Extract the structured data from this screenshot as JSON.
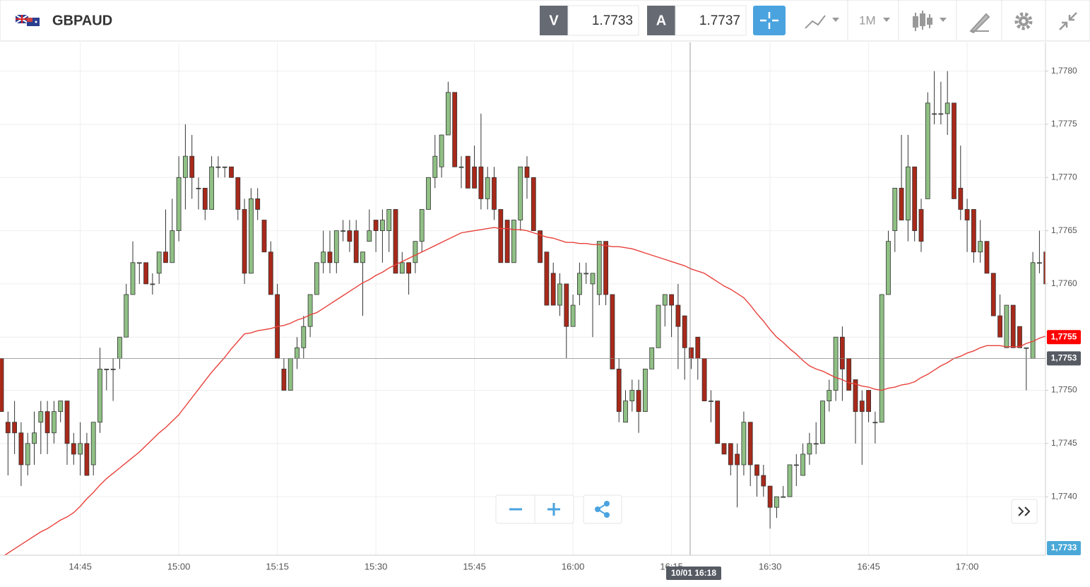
{
  "header": {
    "symbol": "GBPAUD",
    "bid_label": "V",
    "bid": "1.7733",
    "ask_label": "A",
    "ask": "1.7737",
    "timeframe": "1M"
  },
  "chart_data": {
    "type": "candlestick",
    "categories": [
      null,
      null,
      null,
      null,
      null,
      null,
      null,
      null,
      null,
      null,
      null,
      null,
      "14:45",
      null,
      null,
      null,
      null,
      null,
      null,
      null,
      null,
      null,
      null,
      null,
      null,
      null,
      null,
      "15:00",
      null,
      null,
      null,
      null,
      null,
      null,
      null,
      null,
      null,
      null,
      null,
      null,
      null,
      null,
      "15:15",
      null,
      null,
      null,
      null,
      null,
      null,
      null,
      null,
      null,
      null,
      null,
      null,
      null,
      null,
      "15:30",
      null,
      null,
      null,
      null,
      null,
      null,
      null,
      null,
      null,
      null,
      null,
      null,
      null,
      null,
      "15:45",
      null,
      null,
      null,
      null,
      null,
      null,
      null,
      null,
      null,
      null,
      null,
      null,
      null,
      null,
      "16:00",
      null,
      null,
      null,
      null,
      null,
      null,
      null,
      null,
      null,
      null,
      null,
      null,
      null,
      null,
      "16:15",
      null,
      null,
      null,
      null,
      null,
      null,
      null,
      null,
      null,
      null,
      null,
      null,
      null,
      null,
      "16:30",
      null,
      null,
      null,
      null,
      null,
      null,
      null,
      null,
      null,
      null,
      null,
      null,
      null,
      null,
      "16:45",
      null,
      null,
      null,
      null,
      null,
      null,
      null,
      null,
      null,
      null,
      null,
      null,
      null,
      null,
      "17:00",
      null,
      null,
      null,
      null,
      null,
      null,
      null,
      null,
      null,
      null,
      null,
      null
    ],
    "open": [
      1.7753,
      1.7747,
      1.7747,
      1.7746,
      1.7743,
      1.7745,
      1.7747,
      1.7748,
      1.7746,
      1.7748,
      1.7749,
      1.7745,
      1.7744,
      1.7745,
      1.7743,
      1.7747,
      1.7752,
      1.7752,
      1.7753,
      1.7755,
      1.7759,
      1.7762,
      1.7762,
      1.776,
      1.7761,
      1.7763,
      1.7762,
      1.7765,
      1.777,
      1.7772,
      1.7769,
      1.7769,
      1.7767,
      1.7771,
      1.7771,
      1.7771,
      1.777,
      1.7767,
      1.7761,
      1.7768,
      1.7766,
      1.7763,
      1.7759,
      1.7752,
      1.775,
      1.7753,
      1.7754,
      1.7756,
      1.7759,
      1.7762,
      1.7763,
      1.7762,
      1.7765,
      1.7765,
      1.7765,
      1.7762,
      1.7764,
      1.7766,
      1.7765,
      1.7765,
      1.7767,
      1.7761,
      1.7762,
      1.7762,
      1.7764,
      1.7767,
      1.777,
      1.7771,
      1.7774,
      1.7778,
      1.7771,
      1.7772,
      1.7771,
      1.7771,
      1.7768,
      1.777,
      1.7767,
      1.7766,
      1.7762,
      1.7766,
      1.7771,
      1.777,
      1.7765,
      1.7763,
      1.7761,
      1.7758,
      1.776,
      1.7756,
      1.7759,
      1.7761,
      1.776,
      1.7759,
      1.7764,
      1.7759,
      1.7752,
      1.7747,
      1.7749,
      1.775,
      1.7748,
      1.7752,
      1.7754,
      1.7758,
      1.7759,
      1.7758,
      1.7757,
      1.7754,
      1.7755,
      1.7753,
      1.7749,
      1.7749,
      1.7745,
      1.7745,
      1.7744,
      1.7743,
      1.7747,
      1.7743,
      1.7742,
      1.7741,
      1.7739,
      1.774,
      1.774,
      1.7743,
      1.7742,
      1.7744,
      1.7745,
      1.7745,
      1.7749,
      1.775,
      1.7755,
      1.7753,
      1.7751,
      1.7749,
      1.775,
      1.7747,
      1.7747,
      1.7759,
      1.7765,
      1.7769,
      1.7766,
      1.7771,
      1.7767,
      1.7768,
      1.7776,
      1.7776,
      1.7776,
      1.7777,
      1.7769,
      1.7767,
      1.7767,
      1.7763,
      1.7764,
      1.7761,
      1.7757,
      1.7754,
      1.7758,
      1.7756,
      1.7754,
      1.7753,
      1.7762,
      1.7763
    ],
    "high": [
      1.7753,
      1.7748,
      1.7749,
      1.7747,
      1.7746,
      1.7748,
      1.7749,
      1.7749,
      1.7749,
      1.7749,
      1.7749,
      1.7746,
      1.7747,
      1.7746,
      1.7747,
      1.7754,
      1.7752,
      1.7753,
      1.7755,
      1.776,
      1.7764,
      1.7762,
      1.7762,
      1.7761,
      1.7763,
      1.7767,
      1.7768,
      1.7772,
      1.7775,
      1.7774,
      1.777,
      1.7769,
      1.7772,
      1.7772,
      1.7771,
      1.7771,
      1.777,
      1.7768,
      1.7769,
      1.7769,
      1.7766,
      1.7764,
      1.776,
      1.7753,
      1.7753,
      1.7755,
      1.7757,
      1.7759,
      1.7762,
      1.7765,
      1.7765,
      1.7765,
      1.7766,
      1.7766,
      1.7766,
      1.7763,
      1.7767,
      1.7766,
      1.7767,
      1.7767,
      1.7767,
      1.7763,
      1.7762,
      1.7764,
      1.7767,
      1.777,
      1.7774,
      1.7774,
      1.7779,
      1.7778,
      1.7772,
      1.7772,
      1.7773,
      1.7776,
      1.7771,
      1.7771,
      1.7767,
      1.7766,
      1.7766,
      1.7771,
      1.7772,
      1.777,
      1.7765,
      1.7763,
      1.7762,
      1.7761,
      1.776,
      1.7759,
      1.7762,
      1.7762,
      1.7761,
      1.7764,
      1.7764,
      1.7759,
      1.7753,
      1.775,
      1.7751,
      1.7751,
      1.7752,
      1.7754,
      1.7758,
      1.7759,
      1.7759,
      1.776,
      1.7757,
      1.7754,
      1.7755,
      1.7753,
      1.775,
      1.7749,
      1.7745,
      1.7745,
      1.7745,
      1.7748,
      1.7747,
      1.7743,
      1.7743,
      1.7741,
      1.774,
      1.7741,
      1.7743,
      1.7744,
      1.7745,
      1.7746,
      1.7747,
      1.7749,
      1.7751,
      1.7755,
      1.7756,
      1.7753,
      1.7751,
      1.775,
      1.775,
      1.7748,
      1.7759,
      1.7765,
      1.7769,
      1.7774,
      1.7774,
      1.7771,
      1.7768,
      1.7778,
      1.778,
      1.7779,
      1.778,
      1.7777,
      1.7773,
      1.7768,
      1.7767,
      1.7766,
      1.7764,
      1.7761,
      1.7759,
      1.7758,
      1.7758,
      1.7756,
      1.7754,
      1.7763,
      1.7765,
      1.7764
    ],
    "low": [
      1.7748,
      1.7742,
      1.7744,
      1.7741,
      1.7742,
      1.7743,
      1.7744,
      1.7744,
      1.7745,
      1.7747,
      1.7743,
      1.7743,
      1.7742,
      1.7742,
      1.7742,
      1.7746,
      1.775,
      1.7749,
      1.7752,
      1.7755,
      1.7759,
      1.776,
      1.776,
      1.7759,
      1.776,
      1.7762,
      1.7762,
      1.7764,
      1.7767,
      1.7768,
      1.7767,
      1.7766,
      1.7767,
      1.777,
      1.777,
      1.777,
      1.7766,
      1.776,
      1.7761,
      1.7766,
      1.7763,
      1.7759,
      1.7753,
      1.775,
      1.775,
      1.7752,
      1.7753,
      1.7755,
      1.7759,
      1.7761,
      1.7761,
      1.7761,
      1.7764,
      1.7763,
      1.7762,
      1.7757,
      1.7764,
      1.7763,
      1.7762,
      1.7763,
      1.7761,
      1.7761,
      1.7759,
      1.7761,
      1.7763,
      1.7767,
      1.7769,
      1.777,
      1.7774,
      1.7771,
      1.7769,
      1.7769,
      1.7769,
      1.7767,
      1.7767,
      1.7766,
      1.7762,
      1.7762,
      1.7762,
      1.7765,
      1.7768,
      1.7765,
      1.7762,
      1.7758,
      1.7758,
      1.7757,
      1.7753,
      1.7756,
      1.7758,
      1.776,
      1.7755,
      1.7758,
      1.7758,
      1.7752,
      1.7747,
      1.7747,
      1.7748,
      1.7746,
      1.7748,
      1.7752,
      1.7754,
      1.7756,
      1.7755,
      1.7752,
      1.7751,
      1.7752,
      1.7751,
      1.7749,
      1.7747,
      1.7745,
      1.7744,
      1.7742,
      1.7739,
      1.7742,
      1.7741,
      1.774,
      1.774,
      1.7737,
      1.7738,
      1.774,
      1.774,
      1.7741,
      1.7742,
      1.7743,
      1.7744,
      1.7745,
      1.7748,
      1.7749,
      1.7749,
      1.775,
      1.7745,
      1.7743,
      1.7747,
      1.7745,
      1.7747,
      1.7759,
      1.7763,
      1.7766,
      1.7764,
      1.7764,
      1.7763,
      1.7768,
      1.7775,
      1.7775,
      1.7774,
      1.7768,
      1.7766,
      1.7763,
      1.7762,
      1.7762,
      1.7761,
      1.7757,
      1.7755,
      1.7754,
      1.7754,
      1.7754,
      1.775,
      1.7753,
      1.7761,
      1.776
    ],
    "close": [
      1.7748,
      1.7746,
      1.7746,
      1.7743,
      1.7745,
      1.7746,
      1.7748,
      1.7746,
      1.7748,
      1.7749,
      1.7745,
      1.7744,
      1.7745,
      1.7742,
      1.7747,
      1.7752,
      1.7752,
      1.7752,
      1.7755,
      1.7759,
      1.7762,
      1.7762,
      1.776,
      1.776,
      1.7763,
      1.7762,
      1.7765,
      1.777,
      1.7772,
      1.777,
      1.7769,
      1.7767,
      1.7771,
      1.7771,
      1.7771,
      1.777,
      1.7767,
      1.7761,
      1.7768,
      1.7767,
      1.7763,
      1.7759,
      1.7753,
      1.775,
      1.7753,
      1.7754,
      1.7756,
      1.7759,
      1.7762,
      1.7763,
      1.7762,
      1.7765,
      1.7765,
      1.7764,
      1.7762,
      1.7763,
      1.7765,
      1.7765,
      1.7766,
      1.7767,
      1.7761,
      1.7762,
      1.7761,
      1.7764,
      1.7767,
      1.777,
      1.7772,
      1.7774,
      1.7778,
      1.7771,
      1.7771,
      1.7769,
      1.7769,
      1.7768,
      1.777,
      1.7767,
      1.7762,
      1.7762,
      1.7766,
      1.7771,
      1.777,
      1.7765,
      1.7762,
      1.7758,
      1.7758,
      1.776,
      1.7756,
      1.7758,
      1.7761,
      1.7761,
      1.7761,
      1.7764,
      1.7759,
      1.7752,
      1.7748,
      1.7749,
      1.775,
      1.7748,
      1.7752,
      1.7754,
      1.7758,
      1.7759,
      1.7758,
      1.7756,
      1.7754,
      1.7753,
      1.7753,
      1.7749,
      1.7749,
      1.7745,
      1.7744,
      1.7743,
      1.7743,
      1.7747,
      1.7743,
      1.7742,
      1.7741,
      1.7739,
      1.774,
      1.774,
      1.7743,
      1.7743,
      1.7744,
      1.7745,
      1.7745,
      1.7749,
      1.775,
      1.7755,
      1.7752,
      1.775,
      1.7748,
      1.7748,
      1.7748,
      1.7747,
      1.7759,
      1.7764,
      1.7769,
      1.7766,
      1.7771,
      1.7765,
      1.7764,
      1.7777,
      1.7776,
      1.7776,
      1.7777,
      1.7768,
      1.7767,
      1.7766,
      1.7763,
      1.7764,
      1.7761,
      1.7757,
      1.7755,
      1.7758,
      1.7754,
      1.7754,
      1.7754,
      1.7762,
      1.7762,
      1.776
    ],
    "up_color": "#8fc084",
    "down_color": "#a8291a",
    "overlay": {
      "color": "#e8403a",
      "values": [
        1.77343,
        1.77347,
        1.77351,
        1.77355,
        1.77359,
        1.77363,
        1.77367,
        1.7737,
        1.77374,
        1.77378,
        1.77381,
        1.77385,
        1.77391,
        1.77398,
        1.77404,
        1.77411,
        1.77417,
        1.77422,
        1.77427,
        1.77432,
        1.77437,
        1.77442,
        1.77448,
        1.77454,
        1.7746,
        1.77465,
        1.77471,
        1.77477,
        1.77485,
        1.77493,
        1.77501,
        1.77509,
        1.77517,
        1.77524,
        1.77531,
        1.77539,
        1.77546,
        1.77553,
        1.77554,
        1.77556,
        1.77557,
        1.77558,
        1.7756,
        1.77561,
        1.77563,
        1.77566,
        1.77568,
        1.77571,
        1.77573,
        1.77577,
        1.77581,
        1.77585,
        1.77589,
        1.77593,
        1.77597,
        1.77601,
        1.77604,
        1.77608,
        1.77611,
        1.77615,
        1.77618,
        1.77621,
        1.77624,
        1.77627,
        1.7763,
        1.77633,
        1.77636,
        1.77639,
        1.77642,
        1.77645,
        1.77648,
        1.77649,
        1.7765,
        1.77651,
        1.77652,
        1.77653,
        1.77652,
        1.77652,
        1.77651,
        1.77651,
        1.7765,
        1.77648,
        1.77646,
        1.77644,
        1.77643,
        1.77641,
        1.77639,
        1.77639,
        1.77638,
        1.77638,
        1.77637,
        1.77637,
        1.77636,
        1.77635,
        1.77635,
        1.77634,
        1.77633,
        1.77631,
        1.77629,
        1.77627,
        1.77625,
        1.77623,
        1.77621,
        1.77619,
        1.77617,
        1.77614,
        1.77612,
        1.7761,
        1.77606,
        1.77602,
        1.77598,
        1.77595,
        1.77591,
        1.77587,
        1.7758,
        1.77572,
        1.77565,
        1.77557,
        1.7755,
        1.77545,
        1.77539,
        1.77534,
        1.77528,
        1.77523,
        1.7752,
        1.77518,
        1.77515,
        1.77512,
        1.7751,
        1.77507,
        1.77506,
        1.77504,
        1.77503,
        1.77501,
        1.775,
        1.77502,
        1.77503,
        1.77505,
        1.77506,
        1.77508,
        1.77512,
        1.77515,
        1.77519,
        1.77523,
        1.77526,
        1.7753,
        1.77532,
        1.77535,
        1.77537,
        1.7754,
        1.77542,
        1.77542,
        1.77542,
        1.77541,
        1.77541,
        1.77541,
        1.77544,
        1.77546,
        1.77549,
        1.77551
      ]
    },
    "ylim": [
      1.77345,
      1.77827
    ],
    "yticks": [
      {
        "value": 1.774,
        "label": "1,7740"
      },
      {
        "value": 1.7745,
        "label": "1,7745"
      },
      {
        "value": 1.775,
        "label": "1,7750"
      },
      {
        "value": 1.7755,
        "label": "1,7755"
      },
      {
        "value": 1.776,
        "label": "1,7760"
      },
      {
        "value": 1.7765,
        "label": "1,7765"
      },
      {
        "value": 1.777,
        "label": "1,7770"
      },
      {
        "value": 1.7775,
        "label": "1,7775"
      },
      {
        "value": 1.778,
        "label": "1,7780"
      }
    ],
    "grid": true,
    "crosshair": {
      "time_label": "10/01 16:18",
      "price": 1.7753,
      "price_label": "1,7753"
    },
    "markers": [
      {
        "value": 1.7755,
        "label": "1,7755",
        "color": "#ff0000"
      },
      {
        "value": 1.7733,
        "label": "1,7733",
        "color": "#4aa8d8"
      }
    ]
  }
}
